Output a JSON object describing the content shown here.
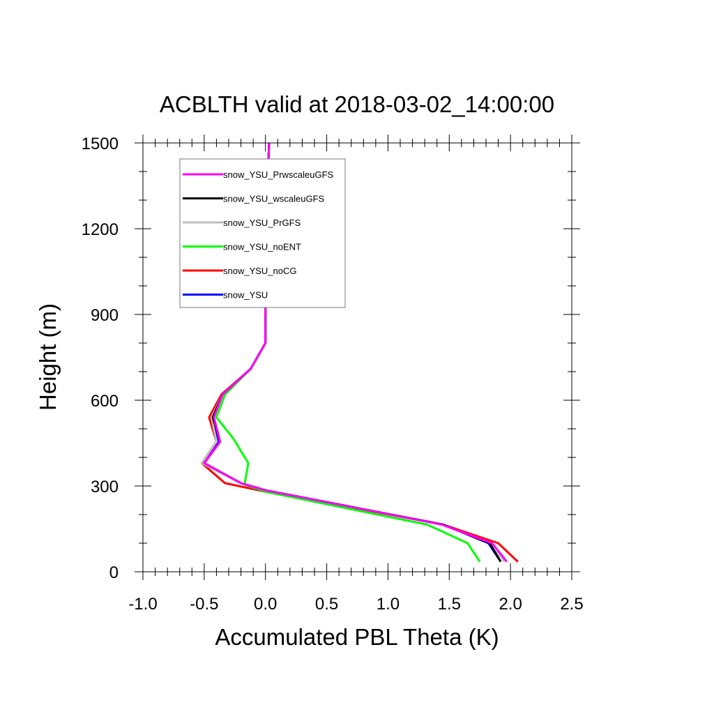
{
  "chart_data": {
    "type": "line",
    "title": "ACBLTH valid at 2018-03-02_14:00:00",
    "xlabel": "Accumulated PBL Theta (K)",
    "ylabel": "Height (m)",
    "xlim": [
      -1.0,
      2.5
    ],
    "ylim": [
      0,
      1500
    ],
    "xticks": [
      "-1.0",
      "-0.5",
      "0.0",
      "0.5",
      "1.0",
      "1.5",
      "2.0",
      "2.5"
    ],
    "yticks": [
      "0",
      "300",
      "600",
      "900",
      "1200",
      "1500"
    ],
    "grid": false,
    "legend_position": "top-left",
    "series": [
      {
        "name": "snow_YSU",
        "color": "#0000ff",
        "points": [
          [
            1.92,
            35
          ],
          [
            1.82,
            100
          ],
          [
            1.45,
            165
          ],
          [
            0.0,
            285
          ],
          [
            -0.2,
            310
          ],
          [
            -0.5,
            380
          ],
          [
            -0.38,
            455
          ],
          [
            -0.43,
            540
          ],
          [
            -0.35,
            620
          ],
          [
            -0.12,
            710
          ],
          [
            0.0,
            800
          ],
          [
            0.0,
            1000
          ],
          [
            0.01,
            1300
          ],
          [
            0.03,
            1500
          ]
        ]
      },
      {
        "name": "snow_YSU_noCG",
        "color": "#ff0000",
        "points": [
          [
            2.06,
            35
          ],
          [
            1.9,
            100
          ],
          [
            1.45,
            165
          ],
          [
            0.0,
            280
          ],
          [
            -0.33,
            310
          ],
          [
            -0.52,
            380
          ],
          [
            -0.4,
            455
          ],
          [
            -0.46,
            540
          ],
          [
            -0.36,
            620
          ],
          [
            -0.12,
            710
          ],
          [
            0.0,
            800
          ],
          [
            0.0,
            1000
          ],
          [
            0.01,
            1300
          ],
          [
            0.03,
            1500
          ]
        ]
      },
      {
        "name": "snow_YSU_noENT",
        "color": "#00ff00",
        "points": [
          [
            1.75,
            35
          ],
          [
            1.65,
            100
          ],
          [
            1.32,
            165
          ],
          [
            0.0,
            280
          ],
          [
            -0.17,
            305
          ],
          [
            -0.14,
            380
          ],
          [
            -0.26,
            465
          ],
          [
            -0.4,
            540
          ],
          [
            -0.33,
            620
          ],
          [
            -0.12,
            710
          ],
          [
            0.0,
            800
          ],
          [
            0.0,
            1000
          ],
          [
            0.01,
            1300
          ],
          [
            0.03,
            1500
          ]
        ]
      },
      {
        "name": "snow_YSU_PrGFS",
        "color": "#bebebe",
        "points": [
          [
            1.95,
            35
          ],
          [
            1.84,
            100
          ],
          [
            1.44,
            165
          ],
          [
            0.0,
            285
          ],
          [
            -0.2,
            310
          ],
          [
            -0.52,
            380
          ],
          [
            -0.4,
            455
          ],
          [
            -0.44,
            540
          ],
          [
            -0.35,
            620
          ],
          [
            -0.12,
            710
          ],
          [
            0.0,
            800
          ],
          [
            0.0,
            1000
          ],
          [
            0.01,
            1300
          ],
          [
            0.03,
            1500
          ]
        ]
      },
      {
        "name": "snow_YSU_wscaleuGFS",
        "color": "#000000",
        "points": [
          [
            1.92,
            35
          ],
          [
            1.83,
            100
          ],
          [
            1.45,
            165
          ],
          [
            0.0,
            285
          ],
          [
            -0.2,
            310
          ],
          [
            -0.5,
            380
          ],
          [
            -0.37,
            455
          ],
          [
            -0.43,
            540
          ],
          [
            -0.35,
            620
          ],
          [
            -0.12,
            710
          ],
          [
            0.0,
            800
          ],
          [
            0.0,
            1000
          ],
          [
            0.01,
            1300
          ],
          [
            0.03,
            1500
          ]
        ]
      },
      {
        "name": "snow_YSU_PrwscaleuGFS",
        "color": "#ff00ff",
        "points": [
          [
            1.97,
            35
          ],
          [
            1.85,
            100
          ],
          [
            1.44,
            165
          ],
          [
            0.0,
            285
          ],
          [
            -0.2,
            310
          ],
          [
            -0.5,
            380
          ],
          [
            -0.37,
            455
          ],
          [
            -0.42,
            540
          ],
          [
            -0.35,
            620
          ],
          [
            -0.12,
            710
          ],
          [
            0.0,
            800
          ],
          [
            0.0,
            1000
          ],
          [
            0.01,
            1300
          ],
          [
            0.03,
            1500
          ]
        ]
      }
    ],
    "legend_order": [
      "snow_YSU_PrwscaleuGFS",
      "snow_YSU_wscaleuGFS",
      "snow_YSU_PrGFS",
      "snow_YSU_noENT",
      "snow_YSU_noCG",
      "snow_YSU"
    ]
  }
}
